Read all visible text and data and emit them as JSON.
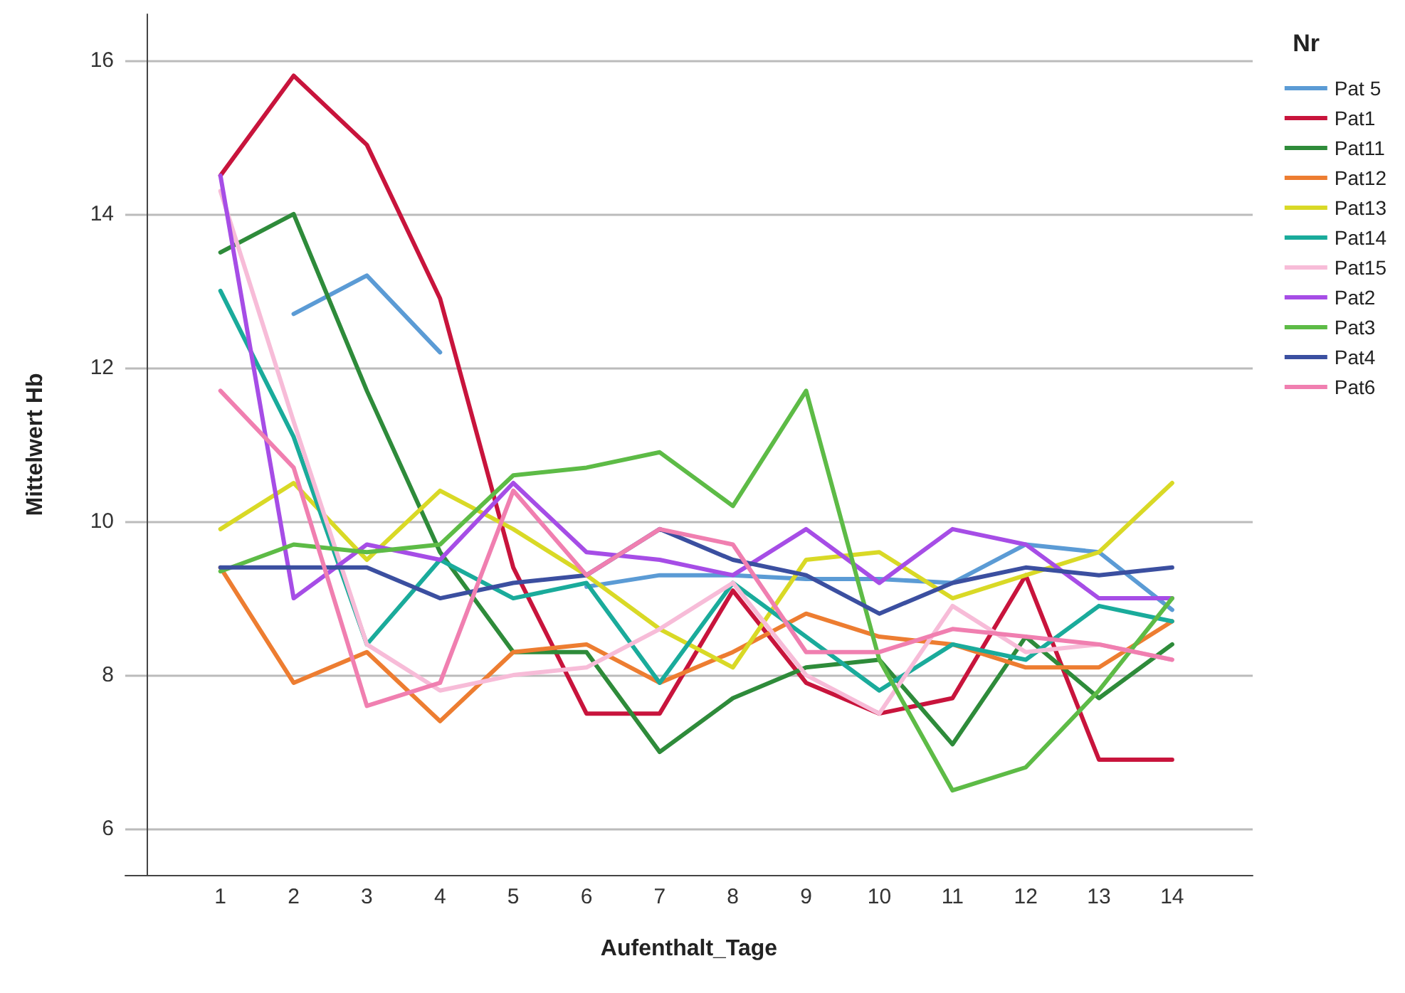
{
  "chart_data": {
    "type": "line",
    "xlabel": "Aufenthalt_Tage",
    "ylabel": "Mittelwert Hb",
    "legend_title": "Nr",
    "x": [
      1,
      2,
      3,
      4,
      5,
      6,
      7,
      8,
      9,
      10,
      11,
      12,
      13,
      14
    ],
    "xlim": [
      -0.3,
      15.1
    ],
    "xticks": [
      1,
      2,
      3,
      4,
      5,
      6,
      7,
      8,
      9,
      10,
      11,
      12,
      13,
      14
    ],
    "ylim": [
      5.4,
      16.6
    ],
    "yticks": [
      6,
      8,
      10,
      12,
      14,
      16
    ],
    "grid": "y",
    "legend": "right",
    "marker": "none",
    "line_style": "solid",
    "series": [
      {
        "name": "Pat 5",
        "color": "#5b9bd5",
        "values": [
          null,
          12.7,
          13.2,
          12.2,
          null,
          9.15,
          9.3,
          9.3,
          9.25,
          9.25,
          9.2,
          9.7,
          9.6,
          8.85
        ]
      },
      {
        "name": "Pat1",
        "color": "#c8143c",
        "values": [
          14.5,
          15.8,
          14.9,
          12.9,
          9.4,
          7.5,
          7.5,
          9.1,
          7.9,
          7.5,
          7.7,
          9.3,
          6.9,
          6.9
        ]
      },
      {
        "name": "Pat11",
        "color": "#2e8b3a",
        "values": [
          13.5,
          14.0,
          11.7,
          9.6,
          8.3,
          8.3,
          7.0,
          7.7,
          8.1,
          8.2,
          7.1,
          8.5,
          7.7,
          8.4
        ]
      },
      {
        "name": "Pat12",
        "color": "#ed7d31",
        "values": [
          9.4,
          7.9,
          8.3,
          7.4,
          8.3,
          8.4,
          7.9,
          8.3,
          8.8,
          8.5,
          8.4,
          8.1,
          8.1,
          8.7
        ]
      },
      {
        "name": "Pat13",
        "color": "#d9d926",
        "values": [
          9.9,
          10.5,
          9.5,
          10.4,
          9.9,
          9.3,
          8.6,
          8.1,
          9.5,
          9.6,
          9.0,
          9.3,
          9.6,
          10.5
        ]
      },
      {
        "name": "Pat14",
        "color": "#1aab9b",
        "values": [
          13.0,
          11.1,
          8.4,
          9.5,
          9.0,
          9.2,
          7.9,
          9.2,
          8.5,
          7.8,
          8.4,
          8.2,
          8.9,
          8.7
        ]
      },
      {
        "name": "Pat15",
        "color": "#f7bcd8",
        "values": [
          14.3,
          11.3,
          8.4,
          7.8,
          8.0,
          8.1,
          8.6,
          9.2,
          8.0,
          7.5,
          8.9,
          8.3,
          8.4,
          8.2
        ]
      },
      {
        "name": "Pat2",
        "color": "#a64de6",
        "values": [
          14.5,
          9.0,
          9.7,
          9.5,
          10.5,
          9.6,
          9.5,
          9.3,
          9.9,
          9.2,
          9.9,
          9.7,
          9.0,
          9.0
        ]
      },
      {
        "name": "Pat3",
        "color": "#5dbb46",
        "values": [
          9.35,
          9.7,
          9.6,
          9.7,
          10.6,
          10.7,
          10.9,
          10.2,
          11.7,
          8.2,
          6.5,
          6.8,
          7.8,
          9.0
        ]
      },
      {
        "name": "Pat4",
        "color": "#3b4fa0",
        "values": [
          9.4,
          9.4,
          9.4,
          9.0,
          9.2,
          9.3,
          9.9,
          9.5,
          9.3,
          8.8,
          9.2,
          9.4,
          9.3,
          9.4
        ]
      },
      {
        "name": "Pat6",
        "color": "#f07fb0",
        "values": [
          11.7,
          10.7,
          7.6,
          7.9,
          10.4,
          9.3,
          9.9,
          9.7,
          8.3,
          8.3,
          8.6,
          8.5,
          8.4,
          8.2
        ]
      }
    ]
  }
}
